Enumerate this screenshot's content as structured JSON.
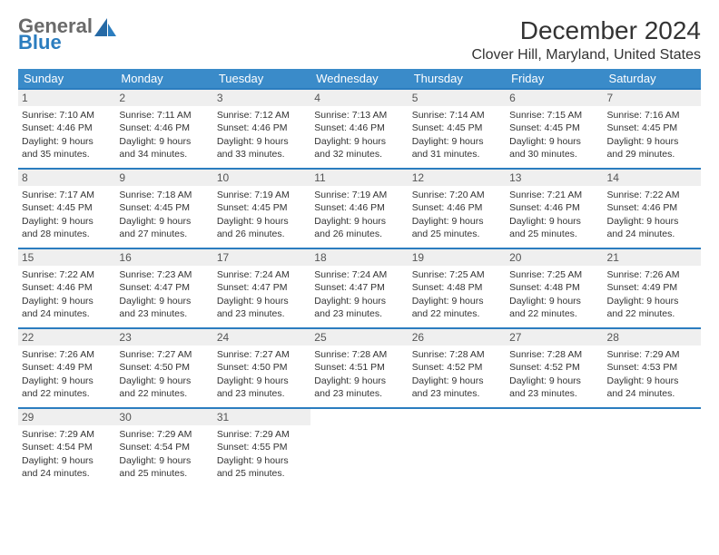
{
  "logo": {
    "general": "General",
    "blue": "Blue"
  },
  "header": {
    "title": "December 2024",
    "location": "Clover Hill, Maryland, United States"
  },
  "style": {
    "header_bg": "#3a8bc9",
    "border_color": "#2b7dbf",
    "empty_bg": "#f2f2f2",
    "daynum_bg": "#efefef",
    "text_color": "#333333",
    "font_size_cell": 10.5,
    "font_size_header": 13,
    "font_size_title": 28,
    "font_size_location": 16
  },
  "weekdays": [
    "Sunday",
    "Monday",
    "Tuesday",
    "Wednesday",
    "Thursday",
    "Friday",
    "Saturday"
  ],
  "weeks": [
    [
      {
        "day": "1",
        "sunrise": "Sunrise: 7:10 AM",
        "sunset": "Sunset: 4:46 PM",
        "daylight1": "Daylight: 9 hours",
        "daylight2": "and 35 minutes."
      },
      {
        "day": "2",
        "sunrise": "Sunrise: 7:11 AM",
        "sunset": "Sunset: 4:46 PM",
        "daylight1": "Daylight: 9 hours",
        "daylight2": "and 34 minutes."
      },
      {
        "day": "3",
        "sunrise": "Sunrise: 7:12 AM",
        "sunset": "Sunset: 4:46 PM",
        "daylight1": "Daylight: 9 hours",
        "daylight2": "and 33 minutes."
      },
      {
        "day": "4",
        "sunrise": "Sunrise: 7:13 AM",
        "sunset": "Sunset: 4:46 PM",
        "daylight1": "Daylight: 9 hours",
        "daylight2": "and 32 minutes."
      },
      {
        "day": "5",
        "sunrise": "Sunrise: 7:14 AM",
        "sunset": "Sunset: 4:45 PM",
        "daylight1": "Daylight: 9 hours",
        "daylight2": "and 31 minutes."
      },
      {
        "day": "6",
        "sunrise": "Sunrise: 7:15 AM",
        "sunset": "Sunset: 4:45 PM",
        "daylight1": "Daylight: 9 hours",
        "daylight2": "and 30 minutes."
      },
      {
        "day": "7",
        "sunrise": "Sunrise: 7:16 AM",
        "sunset": "Sunset: 4:45 PM",
        "daylight1": "Daylight: 9 hours",
        "daylight2": "and 29 minutes."
      }
    ],
    [
      {
        "day": "8",
        "sunrise": "Sunrise: 7:17 AM",
        "sunset": "Sunset: 4:45 PM",
        "daylight1": "Daylight: 9 hours",
        "daylight2": "and 28 minutes."
      },
      {
        "day": "9",
        "sunrise": "Sunrise: 7:18 AM",
        "sunset": "Sunset: 4:45 PM",
        "daylight1": "Daylight: 9 hours",
        "daylight2": "and 27 minutes."
      },
      {
        "day": "10",
        "sunrise": "Sunrise: 7:19 AM",
        "sunset": "Sunset: 4:45 PM",
        "daylight1": "Daylight: 9 hours",
        "daylight2": "and 26 minutes."
      },
      {
        "day": "11",
        "sunrise": "Sunrise: 7:19 AM",
        "sunset": "Sunset: 4:46 PM",
        "daylight1": "Daylight: 9 hours",
        "daylight2": "and 26 minutes."
      },
      {
        "day": "12",
        "sunrise": "Sunrise: 7:20 AM",
        "sunset": "Sunset: 4:46 PM",
        "daylight1": "Daylight: 9 hours",
        "daylight2": "and 25 minutes."
      },
      {
        "day": "13",
        "sunrise": "Sunrise: 7:21 AM",
        "sunset": "Sunset: 4:46 PM",
        "daylight1": "Daylight: 9 hours",
        "daylight2": "and 25 minutes."
      },
      {
        "day": "14",
        "sunrise": "Sunrise: 7:22 AM",
        "sunset": "Sunset: 4:46 PM",
        "daylight1": "Daylight: 9 hours",
        "daylight2": "and 24 minutes."
      }
    ],
    [
      {
        "day": "15",
        "sunrise": "Sunrise: 7:22 AM",
        "sunset": "Sunset: 4:46 PM",
        "daylight1": "Daylight: 9 hours",
        "daylight2": "and 24 minutes."
      },
      {
        "day": "16",
        "sunrise": "Sunrise: 7:23 AM",
        "sunset": "Sunset: 4:47 PM",
        "daylight1": "Daylight: 9 hours",
        "daylight2": "and 23 minutes."
      },
      {
        "day": "17",
        "sunrise": "Sunrise: 7:24 AM",
        "sunset": "Sunset: 4:47 PM",
        "daylight1": "Daylight: 9 hours",
        "daylight2": "and 23 minutes."
      },
      {
        "day": "18",
        "sunrise": "Sunrise: 7:24 AM",
        "sunset": "Sunset: 4:47 PM",
        "daylight1": "Daylight: 9 hours",
        "daylight2": "and 23 minutes."
      },
      {
        "day": "19",
        "sunrise": "Sunrise: 7:25 AM",
        "sunset": "Sunset: 4:48 PM",
        "daylight1": "Daylight: 9 hours",
        "daylight2": "and 22 minutes."
      },
      {
        "day": "20",
        "sunrise": "Sunrise: 7:25 AM",
        "sunset": "Sunset: 4:48 PM",
        "daylight1": "Daylight: 9 hours",
        "daylight2": "and 22 minutes."
      },
      {
        "day": "21",
        "sunrise": "Sunrise: 7:26 AM",
        "sunset": "Sunset: 4:49 PM",
        "daylight1": "Daylight: 9 hours",
        "daylight2": "and 22 minutes."
      }
    ],
    [
      {
        "day": "22",
        "sunrise": "Sunrise: 7:26 AM",
        "sunset": "Sunset: 4:49 PM",
        "daylight1": "Daylight: 9 hours",
        "daylight2": "and 22 minutes."
      },
      {
        "day": "23",
        "sunrise": "Sunrise: 7:27 AM",
        "sunset": "Sunset: 4:50 PM",
        "daylight1": "Daylight: 9 hours",
        "daylight2": "and 22 minutes."
      },
      {
        "day": "24",
        "sunrise": "Sunrise: 7:27 AM",
        "sunset": "Sunset: 4:50 PM",
        "daylight1": "Daylight: 9 hours",
        "daylight2": "and 23 minutes."
      },
      {
        "day": "25",
        "sunrise": "Sunrise: 7:28 AM",
        "sunset": "Sunset: 4:51 PM",
        "daylight1": "Daylight: 9 hours",
        "daylight2": "and 23 minutes."
      },
      {
        "day": "26",
        "sunrise": "Sunrise: 7:28 AM",
        "sunset": "Sunset: 4:52 PM",
        "daylight1": "Daylight: 9 hours",
        "daylight2": "and 23 minutes."
      },
      {
        "day": "27",
        "sunrise": "Sunrise: 7:28 AM",
        "sunset": "Sunset: 4:52 PM",
        "daylight1": "Daylight: 9 hours",
        "daylight2": "and 23 minutes."
      },
      {
        "day": "28",
        "sunrise": "Sunrise: 7:29 AM",
        "sunset": "Sunset: 4:53 PM",
        "daylight1": "Daylight: 9 hours",
        "daylight2": "and 24 minutes."
      }
    ],
    [
      {
        "day": "29",
        "sunrise": "Sunrise: 7:29 AM",
        "sunset": "Sunset: 4:54 PM",
        "daylight1": "Daylight: 9 hours",
        "daylight2": "and 24 minutes."
      },
      {
        "day": "30",
        "sunrise": "Sunrise: 7:29 AM",
        "sunset": "Sunset: 4:54 PM",
        "daylight1": "Daylight: 9 hours",
        "daylight2": "and 25 minutes."
      },
      {
        "day": "31",
        "sunrise": "Sunrise: 7:29 AM",
        "sunset": "Sunset: 4:55 PM",
        "daylight1": "Daylight: 9 hours",
        "daylight2": "and 25 minutes."
      },
      null,
      null,
      null,
      null
    ]
  ]
}
